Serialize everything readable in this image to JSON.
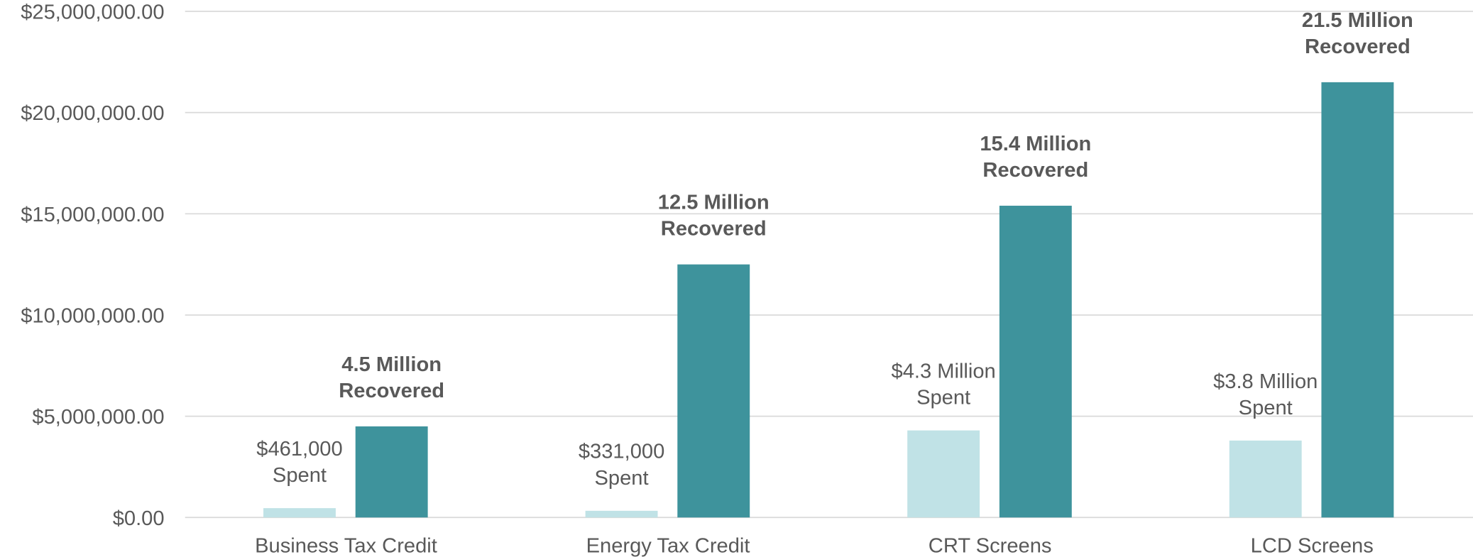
{
  "chart_data": {
    "type": "bar",
    "categories": [
      "Business Tax Credit",
      "Energy Tax Credit",
      "CRT Screens",
      "LCD Screens"
    ],
    "series": [
      {
        "color": "#c0e2e6",
        "values": [
          461000,
          331000,
          4300000,
          3800000
        ],
        "value_labels": [
          "$461,000\nSpent",
          "$331,000\nSpent",
          "$4.3 Million\nSpent",
          "$3.8 Million\nSpent"
        ]
      },
      {
        "color": "#3e939c",
        "values": [
          4500000,
          12500000,
          15400000,
          21500000
        ],
        "value_labels": [
          "4.5 Million\nRecovered",
          "12.5 Million\nRecovered",
          "15.4 Million\nRecovered",
          "21.5 Million\nRecovered"
        ]
      }
    ],
    "ylim": [
      0,
      25000000
    ],
    "yticks": [
      {
        "value": 0,
        "label": "$0.00"
      },
      {
        "value": 5000000,
        "label": "$5,000,000.00"
      },
      {
        "value": 10000000,
        "label": "$10,000,000.00"
      },
      {
        "value": 15000000,
        "label": "$15,000,000.00"
      },
      {
        "value": 20000000,
        "label": "$20,000,000.00"
      },
      {
        "value": 25000000,
        "label": "$25,000,000.00"
      }
    ],
    "grid": true
  }
}
